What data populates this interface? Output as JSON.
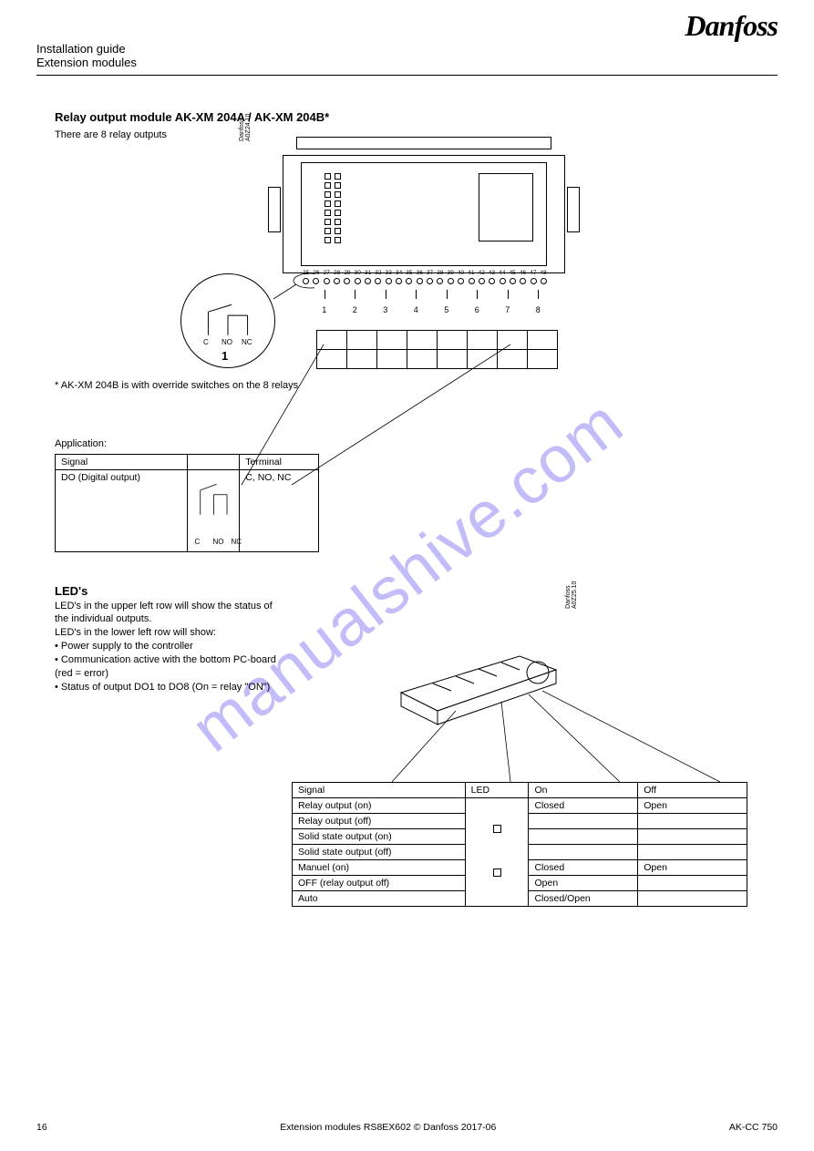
{
  "header": {
    "doc_title": "Installation guide",
    "product_line": "Extension modules",
    "logo_text": "Danfoss"
  },
  "module_heading": "Relay output module AK-XM 204A / AK-XM 204B*",
  "module_text": "There are 8 relay outputs",
  "terminal_numbers": [
    "25",
    "26",
    "27",
    "28",
    "29",
    "30",
    "31",
    "32",
    "33",
    "34",
    "35",
    "36",
    "37",
    "38",
    "39",
    "40",
    "41",
    "42",
    "43",
    "44",
    "45",
    "46",
    "47",
    "48"
  ],
  "row_indices": [
    "1",
    "2",
    "3",
    "4",
    "5",
    "6",
    "7",
    "8"
  ],
  "footnote": "* AK-XM 204B is with override switches on the 8 relays",
  "detail_circle": {
    "labels": [
      "C",
      "NO",
      "NC"
    ],
    "label_1": "1"
  },
  "device_annot": "Danfoss\nA0Z24.10",
  "app_table_heading": "Application:",
  "signal_table": {
    "headers": [
      "Signal",
      "",
      "Terminal"
    ],
    "row": {
      "signal": "DO (Digital output)",
      "terminal_img": "relay-sym",
      "terminal_txt": "C, NO, NC"
    },
    "pin_labels": [
      "C",
      "NO",
      "NC"
    ]
  },
  "led_section": {
    "title": "LED's",
    "text_lines": [
      "LED's in the upper left row will show the status of the individual outputs.",
      "LED's in the lower left row will show:",
      "• Power supply to the controller",
      "• Communication active with the bottom PC-board (red = error)",
      "• Status of output DO1 to DO8 (On = relay \"ON\")"
    ]
  },
  "right_annot": "Danfoss\nA0Z25.10",
  "right_table": {
    "headers": [
      "Signal",
      "LED",
      "On",
      "Off"
    ],
    "rows": [
      [
        "Relay output (on)",
        "●",
        "Closed",
        "Open"
      ],
      [
        "Relay output (off)",
        "",
        "",
        ""
      ],
      [
        "Solid state output (on)",
        "",
        "",
        ""
      ],
      [
        "Solid state output (off)",
        "",
        "",
        ""
      ],
      [
        "Manuel (on)",
        "●",
        "Closed",
        "Open"
      ],
      [
        "OFF (relay output off)",
        "",
        "Open",
        ""
      ],
      [
        "Auto",
        "",
        "Closed/Open",
        ""
      ]
    ]
  },
  "footer": {
    "page": "16",
    "center": "Extension modules  RS8EX602  ©  Danfoss  2017-06",
    "right": "AK-CC 750"
  },
  "watermark": "manualshive.com",
  "colors": {
    "watermark": "#7a6cf0",
    "line": "#000000",
    "bg": "#ffffff"
  }
}
